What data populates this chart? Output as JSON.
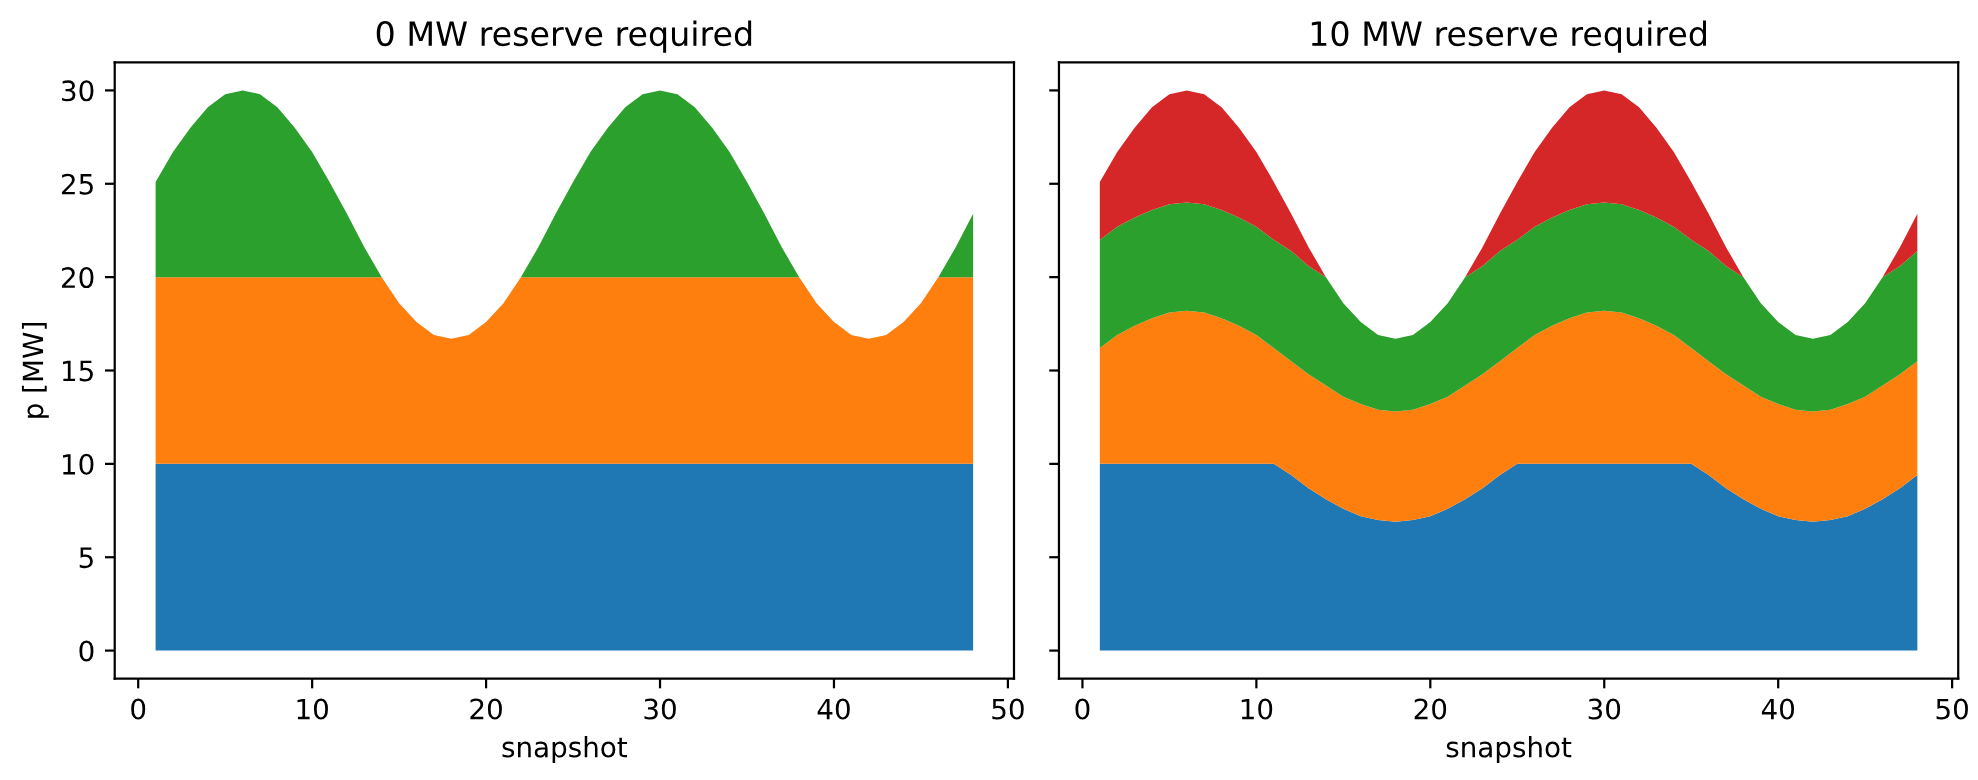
{
  "chart_data": [
    {
      "type": "area",
      "stacked": true,
      "title": "0 MW reserve required",
      "xlabel": "snapshot",
      "ylabel": "p [MW]",
      "x": [
        1,
        2,
        3,
        4,
        5,
        6,
        7,
        8,
        9,
        10,
        11,
        12,
        13,
        14,
        15,
        16,
        17,
        18,
        19,
        20,
        21,
        22,
        23,
        24,
        25,
        26,
        27,
        28,
        29,
        30,
        31,
        32,
        33,
        34,
        35,
        36,
        37,
        38,
        39,
        40,
        41,
        42,
        43,
        44,
        45,
        46,
        47,
        48
      ],
      "xlim": [
        -1.35,
        50.35
      ],
      "xticks": [
        0,
        10,
        20,
        30,
        40,
        50
      ],
      "ylim": [
        -1.5,
        31.5
      ],
      "yticks": [
        0,
        5,
        10,
        15,
        20,
        25,
        30
      ],
      "grid": false,
      "series": [
        {
          "color": "#1f77b4",
          "values": [
            10,
            10,
            10,
            10,
            10,
            10,
            10,
            10,
            10,
            10,
            10,
            10,
            10,
            10,
            10,
            10,
            10,
            10,
            10,
            10,
            10,
            10,
            10,
            10,
            10,
            10,
            10,
            10,
            10,
            10,
            10,
            10,
            10,
            10,
            10,
            10,
            10,
            10,
            10,
            10,
            10,
            10,
            10,
            10,
            10,
            10,
            10,
            10
          ]
        },
        {
          "color": "#ff7f0e",
          "values": [
            10,
            10,
            10,
            10,
            10,
            10,
            10,
            10,
            10,
            10,
            10,
            10,
            10,
            10,
            8.6,
            7.6,
            6.9,
            6.7,
            6.9,
            7.6,
            8.6,
            10,
            10,
            10,
            10,
            10,
            10,
            10,
            10,
            10,
            10,
            10,
            10,
            10,
            10,
            10,
            10,
            10,
            8.6,
            7.6,
            6.9,
            6.7,
            6.9,
            7.6,
            8.6,
            10,
            10,
            10
          ]
        },
        {
          "color": "#2ca02c",
          "values": [
            5.1,
            6.7,
            8.0,
            9.1,
            9.8,
            10.0,
            9.8,
            9.1,
            8.0,
            6.7,
            5.1,
            3.4,
            1.6,
            0,
            0,
            0,
            0,
            0,
            0,
            0,
            0,
            0,
            1.6,
            3.4,
            5.1,
            6.7,
            8.0,
            9.1,
            9.8,
            10.0,
            9.8,
            9.1,
            8.0,
            6.7,
            5.1,
            3.4,
            1.6,
            0,
            0,
            0,
            0,
            0,
            0,
            0,
            0,
            0,
            1.6,
            3.4
          ]
        }
      ]
    },
    {
      "type": "area",
      "stacked": true,
      "title": "10 MW reserve required",
      "xlabel": "snapshot",
      "tick_labels": "x",
      "x": [
        1,
        2,
        3,
        4,
        5,
        6,
        7,
        8,
        9,
        10,
        11,
        12,
        13,
        14,
        15,
        16,
        17,
        18,
        19,
        20,
        21,
        22,
        23,
        24,
        25,
        26,
        27,
        28,
        29,
        30,
        31,
        32,
        33,
        34,
        35,
        36,
        37,
        38,
        39,
        40,
        41,
        42,
        43,
        44,
        45,
        46,
        47,
        48
      ],
      "xlim": [
        -1.35,
        50.35
      ],
      "xticks": [
        0,
        10,
        20,
        30,
        40,
        50
      ],
      "ylim": [
        -1.5,
        31.5
      ],
      "yticks": [
        0,
        5,
        10,
        15,
        20,
        25,
        30
      ],
      "grid": false,
      "series": [
        {
          "color": "#1f77b4",
          "values": [
            10,
            10,
            10,
            10,
            10,
            10,
            10,
            10,
            10,
            10,
            10,
            9.4,
            8.7,
            8.1,
            7.6,
            7.2,
            7.0,
            6.9,
            7.0,
            7.2,
            7.6,
            8.1,
            8.7,
            9.4,
            10,
            10,
            10,
            10,
            10,
            10,
            10,
            10,
            10,
            10,
            10,
            9.4,
            8.7,
            8.1,
            7.6,
            7.2,
            7.0,
            6.9,
            7.0,
            7.2,
            7.6,
            8.1,
            8.7,
            9.4
          ]
        },
        {
          "color": "#ff7f0e",
          "values": [
            6.2,
            6.9,
            7.4,
            7.8,
            8.1,
            8.2,
            8.1,
            7.8,
            7.4,
            6.9,
            6.2,
            6.1,
            6.1,
            6.1,
            6.0,
            6.0,
            5.9,
            5.9,
            5.9,
            6.0,
            6.0,
            6.1,
            6.1,
            6.1,
            6.2,
            6.9,
            7.4,
            7.8,
            8.1,
            8.2,
            8.1,
            7.8,
            7.4,
            6.9,
            6.2,
            6.1,
            6.1,
            6.1,
            6.0,
            6.0,
            5.9,
            5.9,
            5.9,
            6.0,
            6.0,
            6.1,
            6.1,
            6.1
          ]
        },
        {
          "color": "#2ca02c",
          "values": [
            5.8,
            5.8,
            5.8,
            5.8,
            5.8,
            5.8,
            5.8,
            5.8,
            5.8,
            5.8,
            5.8,
            5.9,
            5.8,
            5.8,
            5.0,
            4.4,
            4.0,
            3.9,
            4.0,
            4.4,
            5.0,
            5.8,
            5.8,
            5.9,
            5.8,
            5.8,
            5.8,
            5.8,
            5.8,
            5.8,
            5.8,
            5.8,
            5.8,
            5.8,
            5.8,
            5.9,
            5.8,
            5.8,
            5.0,
            4.4,
            4.0,
            3.9,
            4.0,
            4.4,
            5.0,
            5.8,
            5.8,
            5.9
          ]
        },
        {
          "color": "#d62728",
          "values": [
            3.1,
            4.0,
            4.8,
            5.5,
            5.9,
            6.0,
            5.9,
            5.5,
            4.8,
            4.0,
            3.1,
            2.0,
            1.0,
            0,
            0,
            0,
            0,
            0,
            0,
            0,
            0,
            0,
            1.0,
            2.0,
            3.1,
            4.0,
            4.8,
            5.5,
            5.9,
            6.0,
            5.9,
            5.5,
            4.8,
            4.0,
            3.1,
            2.0,
            1.0,
            0,
            0,
            0,
            0,
            0,
            0,
            0,
            0,
            0,
            1.0,
            2.0
          ]
        }
      ]
    }
  ]
}
